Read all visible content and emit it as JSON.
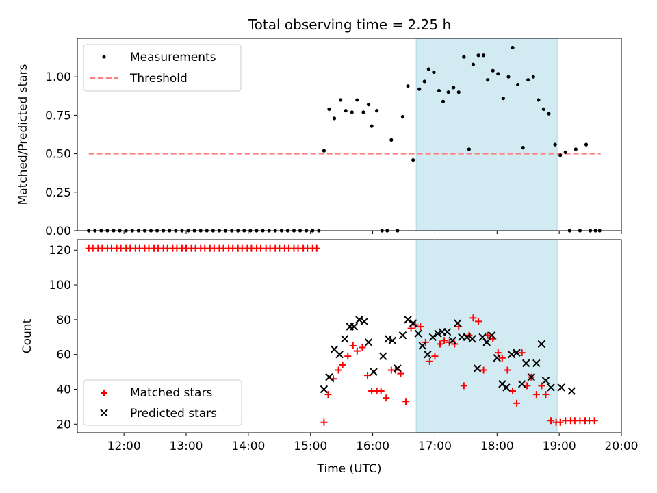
{
  "chart_data": [
    {
      "panel": "top",
      "type": "scatter",
      "title": "Total observing time = 2.25 h",
      "xlabel": "",
      "ylabel": "Matched/Predicted stars",
      "xlim": [
        "11:15",
        "20:00"
      ],
      "ylim": [
        0,
        1.25
      ],
      "y_ticks": [
        0.0,
        0.25,
        0.5,
        0.75,
        1.0
      ],
      "y_tick_labels": [
        "0.00",
        "0.25",
        "0.50",
        "0.75",
        "1.00"
      ],
      "highlight_span": {
        "from": "16:42",
        "to": "18:58",
        "color": "#add8e6"
      },
      "legend": {
        "position": "upper-left",
        "entries": [
          "Measurements",
          "Threshold"
        ]
      },
      "series": [
        {
          "name": "Measurements",
          "marker": "dot",
          "color": "#000000",
          "points": [
            [
              "11:26",
              0
            ],
            [
              "11:32",
              0
            ],
            [
              "11:38",
              0
            ],
            [
              "11:44",
              0
            ],
            [
              "11:50",
              0
            ],
            [
              "11:56",
              0
            ],
            [
              "12:02",
              0
            ],
            [
              "12:08",
              0
            ],
            [
              "12:14",
              0
            ],
            [
              "12:20",
              0
            ],
            [
              "12:26",
              0
            ],
            [
              "12:32",
              0
            ],
            [
              "12:38",
              0
            ],
            [
              "12:44",
              0
            ],
            [
              "12:50",
              0
            ],
            [
              "12:56",
              0
            ],
            [
              "13:02",
              0
            ],
            [
              "13:08",
              0
            ],
            [
              "13:14",
              0
            ],
            [
              "13:20",
              0
            ],
            [
              "13:26",
              0
            ],
            [
              "13:32",
              0
            ],
            [
              "13:38",
              0
            ],
            [
              "13:44",
              0
            ],
            [
              "13:50",
              0
            ],
            [
              "13:56",
              0
            ],
            [
              "14:02",
              0
            ],
            [
              "14:08",
              0
            ],
            [
              "14:14",
              0
            ],
            [
              "14:20",
              0
            ],
            [
              "14:26",
              0
            ],
            [
              "14:32",
              0
            ],
            [
              "14:38",
              0
            ],
            [
              "14:44",
              0
            ],
            [
              "14:50",
              0
            ],
            [
              "14:56",
              0
            ],
            [
              "15:02",
              0
            ],
            [
              "15:08",
              0
            ],
            [
              "15:13",
              0.52
            ],
            [
              "15:18",
              0.79
            ],
            [
              "15:23",
              0.73
            ],
            [
              "15:29",
              0.85
            ],
            [
              "15:34",
              0.78
            ],
            [
              "15:40",
              0.77
            ],
            [
              "15:45",
              0.85
            ],
            [
              "15:51",
              0.77
            ],
            [
              "15:56",
              0.82
            ],
            [
              "15:59",
              0.68
            ],
            [
              "16:04",
              0.78
            ],
            [
              "16:09",
              0
            ],
            [
              "16:14",
              0
            ],
            [
              "16:18",
              0.59
            ],
            [
              "16:24",
              0
            ],
            [
              "16:29",
              0.74
            ],
            [
              "16:34",
              0.94
            ],
            [
              "16:39",
              0.46
            ],
            [
              "16:45",
              0.92
            ],
            [
              "16:50",
              0.97
            ],
            [
              "16:54",
              1.05
            ],
            [
              "16:59",
              1.03
            ],
            [
              "17:04",
              0.91
            ],
            [
              "17:08",
              0.84
            ],
            [
              "17:13",
              0.9
            ],
            [
              "17:18",
              0.93
            ],
            [
              "17:23",
              0.9
            ],
            [
              "17:28",
              1.13
            ],
            [
              "17:33",
              0.53
            ],
            [
              "17:37",
              1.08
            ],
            [
              "17:42",
              1.14
            ],
            [
              "17:47",
              1.14
            ],
            [
              "17:51",
              0.98
            ],
            [
              "17:56",
              1.04
            ],
            [
              "18:01",
              1.02
            ],
            [
              "18:06",
              0.86
            ],
            [
              "18:11",
              1.0
            ],
            [
              "18:15",
              1.19
            ],
            [
              "18:20",
              0.95
            ],
            [
              "18:25",
              0.54
            ],
            [
              "18:30",
              0.98
            ],
            [
              "18:35",
              1.0
            ],
            [
              "18:40",
              0.85
            ],
            [
              "18:45",
              0.79
            ],
            [
              "18:50",
              0.76
            ],
            [
              "18:56",
              0.56
            ],
            [
              "19:01",
              0.49
            ],
            [
              "19:06",
              0.51
            ],
            [
              "19:10",
              0
            ],
            [
              "19:16",
              0.53
            ],
            [
              "19:20",
              0
            ],
            [
              "19:26",
              0.56
            ],
            [
              "19:30",
              0
            ],
            [
              "19:35",
              0
            ],
            [
              "19:39",
              0
            ]
          ]
        },
        {
          "name": "Threshold",
          "type": "line",
          "style": "dashed",
          "color": "#ff7f7f",
          "points": [
            [
              "11:26",
              0.5
            ],
            [
              "19:40",
              0.5
            ]
          ]
        }
      ]
    },
    {
      "panel": "bottom",
      "type": "scatter",
      "title": "",
      "xlabel": "Time (UTC)",
      "ylabel": "Count",
      "xlim": [
        "11:15",
        "20:00"
      ],
      "ylim": [
        15,
        126
      ],
      "y_ticks": [
        20,
        40,
        60,
        80,
        100,
        120
      ],
      "y_tick_labels": [
        "20",
        "40",
        "60",
        "80",
        "100",
        "120"
      ],
      "x_ticks": [
        "12:00",
        "13:00",
        "14:00",
        "15:00",
        "16:00",
        "17:00",
        "18:00",
        "19:00",
        "20:00"
      ],
      "highlight_span": {
        "from": "16:42",
        "to": "18:58",
        "color": "#add8e6"
      },
      "legend": {
        "position": "lower-left",
        "entries": [
          "Matched stars",
          "Predicted stars"
        ]
      },
      "series": [
        {
          "name": "Matched stars",
          "marker": "plus",
          "color": "#ff0000",
          "points": [
            [
              "11:26",
              121
            ],
            [
              "11:30",
              121
            ],
            [
              "11:35",
              121
            ],
            [
              "11:39",
              121
            ],
            [
              "11:44",
              121
            ],
            [
              "11:48",
              121
            ],
            [
              "11:53",
              121
            ],
            [
              "11:57",
              121
            ],
            [
              "12:02",
              121
            ],
            [
              "12:06",
              121
            ],
            [
              "12:11",
              121
            ],
            [
              "12:15",
              121
            ],
            [
              "12:20",
              121
            ],
            [
              "12:24",
              121
            ],
            [
              "12:29",
              121
            ],
            [
              "12:33",
              121
            ],
            [
              "12:38",
              121
            ],
            [
              "12:42",
              121
            ],
            [
              "12:47",
              121
            ],
            [
              "12:51",
              121
            ],
            [
              "12:56",
              121
            ],
            [
              "13:00",
              121
            ],
            [
              "13:05",
              121
            ],
            [
              "13:09",
              121
            ],
            [
              "13:14",
              121
            ],
            [
              "13:18",
              121
            ],
            [
              "13:23",
              121
            ],
            [
              "13:27",
              121
            ],
            [
              "13:32",
              121
            ],
            [
              "13:36",
              121
            ],
            [
              "13:41",
              121
            ],
            [
              "13:45",
              121
            ],
            [
              "13:50",
              121
            ],
            [
              "13:54",
              121
            ],
            [
              "13:59",
              121
            ],
            [
              "14:03",
              121
            ],
            [
              "14:08",
              121
            ],
            [
              "14:12",
              121
            ],
            [
              "14:17",
              121
            ],
            [
              "14:21",
              121
            ],
            [
              "14:26",
              121
            ],
            [
              "14:30",
              121
            ],
            [
              "14:35",
              121
            ],
            [
              "14:39",
              121
            ],
            [
              "14:44",
              121
            ],
            [
              "14:48",
              121
            ],
            [
              "14:53",
              121
            ],
            [
              "14:57",
              121
            ],
            [
              "15:02",
              121
            ],
            [
              "15:06",
              121
            ],
            [
              "15:13",
              21
            ],
            [
              "15:17",
              37
            ],
            [
              "15:22",
              46
            ],
            [
              "15:27",
              51
            ],
            [
              "15:31",
              54
            ],
            [
              "15:36",
              59
            ],
            [
              "15:41",
              65
            ],
            [
              "15:45",
              62
            ],
            [
              "15:50",
              64
            ],
            [
              "15:55",
              48
            ],
            [
              "15:59",
              39
            ],
            [
              "16:04",
              39
            ],
            [
              "16:08",
              39
            ],
            [
              "16:13",
              35
            ],
            [
              "16:18",
              51
            ],
            [
              "16:22",
              51
            ],
            [
              "16:27",
              49
            ],
            [
              "16:32",
              33
            ],
            [
              "16:37",
              75
            ],
            [
              "16:41",
              77
            ],
            [
              "16:46",
              76
            ],
            [
              "16:51",
              67
            ],
            [
              "16:55",
              56
            ],
            [
              "17:00",
              59
            ],
            [
              "17:05",
              66
            ],
            [
              "17:09",
              68
            ],
            [
              "17:14",
              67
            ],
            [
              "17:19",
              66
            ],
            [
              "17:23",
              76
            ],
            [
              "17:28",
              42
            ],
            [
              "17:33",
              71
            ],
            [
              "17:37",
              81
            ],
            [
              "17:42",
              79
            ],
            [
              "17:47",
              51
            ],
            [
              "17:51",
              71
            ],
            [
              "17:56",
              69
            ],
            [
              "18:01",
              61
            ],
            [
              "18:05",
              58
            ],
            [
              "18:10",
              51
            ],
            [
              "18:15",
              39
            ],
            [
              "18:19",
              32
            ],
            [
              "18:24",
              61
            ],
            [
              "18:29",
              42
            ],
            [
              "18:33",
              47
            ],
            [
              "18:38",
              37
            ],
            [
              "18:43",
              42
            ],
            [
              "18:47",
              37
            ],
            [
              "18:52",
              22
            ],
            [
              "18:57",
              21
            ],
            [
              "19:01",
              21
            ],
            [
              "19:06",
              22
            ],
            [
              "19:11",
              22
            ],
            [
              "19:15",
              22
            ],
            [
              "19:20",
              22
            ],
            [
              "19:25",
              22
            ],
            [
              "19:29",
              22
            ],
            [
              "19:34",
              22
            ]
          ]
        },
        {
          "name": "Predicted stars",
          "marker": "x",
          "color": "#000000",
          "points": [
            [
              "15:13",
              40
            ],
            [
              "15:18",
              47
            ],
            [
              "15:23",
              63
            ],
            [
              "15:28",
              60
            ],
            [
              "15:33",
              69
            ],
            [
              "15:38",
              76
            ],
            [
              "15:42",
              76
            ],
            [
              "15:47",
              80
            ],
            [
              "15:52",
              79
            ],
            [
              "15:56",
              67
            ],
            [
              "16:01",
              50
            ],
            [
              "16:10",
              59
            ],
            [
              "16:15",
              69
            ],
            [
              "16:19",
              68
            ],
            [
              "16:24",
              52
            ],
            [
              "16:29",
              71
            ],
            [
              "16:34",
              80
            ],
            [
              "16:39",
              78
            ],
            [
              "16:44",
              72
            ],
            [
              "16:48",
              65
            ],
            [
              "16:53",
              60
            ],
            [
              "16:58",
              70
            ],
            [
              "17:03",
              72
            ],
            [
              "17:07",
              73
            ],
            [
              "17:12",
              73
            ],
            [
              "17:17",
              68
            ],
            [
              "17:22",
              78
            ],
            [
              "17:26",
              70
            ],
            [
              "17:31",
              70
            ],
            [
              "17:36",
              69
            ],
            [
              "17:41",
              52
            ],
            [
              "17:46",
              70
            ],
            [
              "17:50",
              67
            ],
            [
              "17:55",
              71
            ],
            [
              "18:00",
              58
            ],
            [
              "18:05",
              43
            ],
            [
              "18:09",
              41
            ],
            [
              "18:14",
              60
            ],
            [
              "18:19",
              61
            ],
            [
              "18:24",
              43
            ],
            [
              "18:28",
              55
            ],
            [
              "18:33",
              47
            ],
            [
              "18:38",
              55
            ],
            [
              "18:43",
              66
            ],
            [
              "18:47",
              45
            ],
            [
              "18:52",
              41
            ],
            [
              "19:02",
              41
            ],
            [
              "19:12",
              39
            ]
          ]
        }
      ]
    }
  ]
}
